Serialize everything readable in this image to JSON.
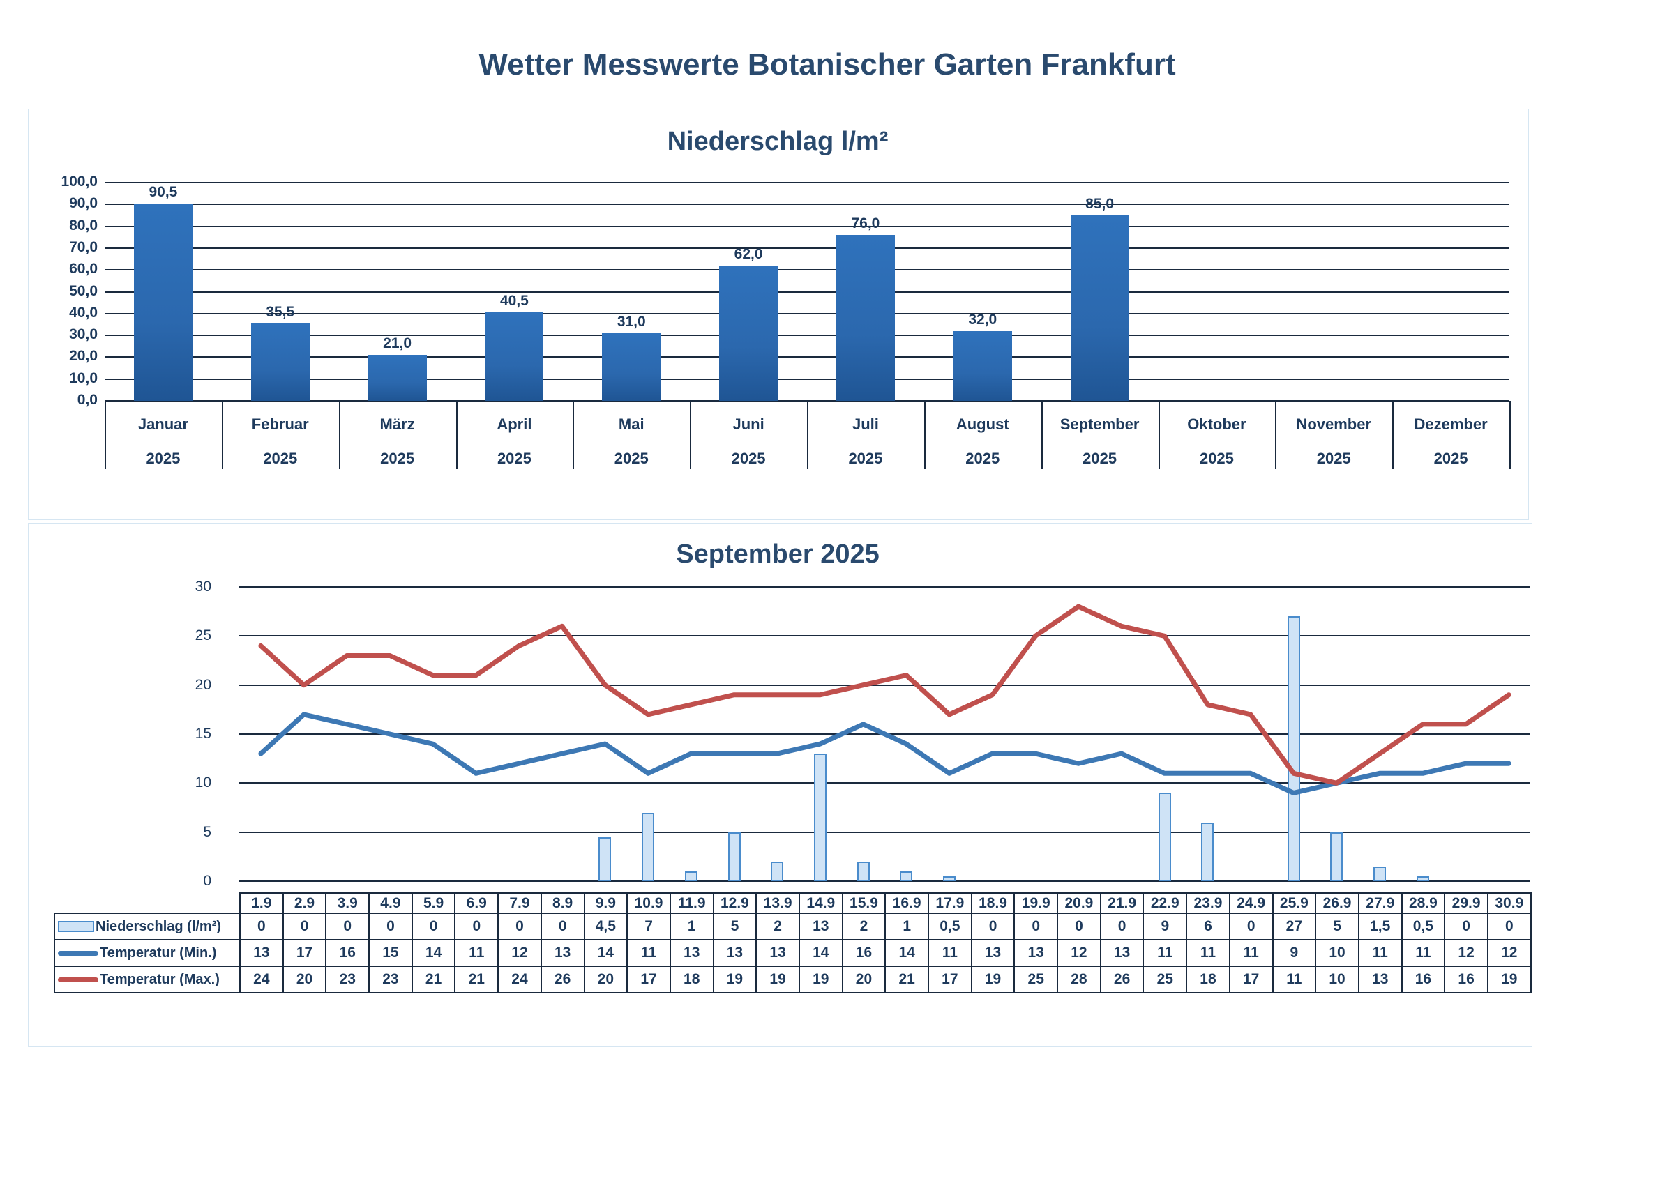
{
  "page": {
    "title": "Wetter Messwerte Botanischer Garten Frankfurt"
  },
  "colors": {
    "title_text": "#2a4a6e",
    "bar_monthly": "#2b68ae",
    "bar_daily_fill": "#cfe3f6",
    "bar_daily_border": "#4a8ccc",
    "temp_min_line": "#3d78b4",
    "temp_max_line": "#c0504d",
    "gridline": "#1a2a3e"
  },
  "chart_data": [
    {
      "type": "bar",
      "title": "Niederschlag l/m²",
      "xlabel": "",
      "ylabel": "",
      "ylim": [
        0,
        100
      ],
      "yticks": [
        "0,0",
        "10,0",
        "20,0",
        "30,0",
        "40,0",
        "50,0",
        "60,0",
        "70,0",
        "80,0",
        "90,0",
        "100,0"
      ],
      "grid": true,
      "legend": null,
      "categories": [
        "Januar",
        "Februar",
        "März",
        "April",
        "Mai",
        "Juni",
        "Juli",
        "August",
        "September",
        "Oktober",
        "November",
        "Dezember"
      ],
      "category_year": "2025",
      "values": [
        90.5,
        35.5,
        21.0,
        40.5,
        31.0,
        62.0,
        76.0,
        32.0,
        85.0,
        null,
        null,
        null
      ],
      "value_labels": [
        "90,5",
        "35,5",
        "21,0",
        "40,5",
        "31,0",
        "62,0",
        "76,0",
        "32,0",
        "85,0",
        "",
        "",
        ""
      ]
    },
    {
      "type": "bar+line",
      "title": "September 2025",
      "xlabel": "",
      "ylabel": "",
      "ylim": [
        0,
        30
      ],
      "yticks": [
        "0",
        "5",
        "10",
        "15",
        "20",
        "25",
        "30"
      ],
      "grid": true,
      "legend_position": "data-table-left",
      "x": [
        "1.9",
        "2.9",
        "3.9",
        "4.9",
        "5.9",
        "6.9",
        "7.9",
        "8.9",
        "9.9",
        "10.9",
        "11.9",
        "12.9",
        "13.9",
        "14.9",
        "15.9",
        "16.9",
        "17.9",
        "18.9",
        "19.9",
        "20.9",
        "21.9",
        "22.9",
        "23.9",
        "24.9",
        "25.9",
        "26.9",
        "27.9",
        "28.9",
        "29.9",
        "30.9"
      ],
      "series": [
        {
          "name": "Niederschlag (l/m²)",
          "kind": "bar",
          "values": [
            0,
            0,
            0,
            0,
            0,
            0,
            0,
            0,
            4.5,
            7,
            1,
            5,
            2,
            13,
            2,
            1,
            0.5,
            0,
            0,
            0,
            0,
            9,
            6,
            0,
            27,
            5,
            1.5,
            0.5,
            0,
            0
          ],
          "labels": [
            "0",
            "0",
            "0",
            "0",
            "0",
            "0",
            "0",
            "0",
            "4,5",
            "7",
            "1",
            "5",
            "2",
            "13",
            "2",
            "1",
            "0,5",
            "0",
            "0",
            "0",
            "0",
            "9",
            "6",
            "0",
            "27",
            "5",
            "1,5",
            "0,5",
            "0",
            "0"
          ]
        },
        {
          "name": "Temperatur (Min.)",
          "kind": "line",
          "values": [
            13,
            17,
            16,
            15,
            14,
            11,
            12,
            13,
            14,
            11,
            13,
            13,
            13,
            14,
            16,
            14,
            11,
            13,
            13,
            12,
            13,
            11,
            11,
            11,
            9,
            10,
            11,
            11,
            12,
            12
          ]
        },
        {
          "name": "Temperatur (Max.)",
          "kind": "line",
          "values": [
            24,
            20,
            23,
            23,
            21,
            21,
            24,
            26,
            20,
            17,
            18,
            19,
            19,
            19,
            20,
            21,
            17,
            19,
            25,
            28,
            26,
            25,
            18,
            17,
            11,
            10,
            13,
            16,
            16,
            19
          ]
        }
      ]
    }
  ]
}
